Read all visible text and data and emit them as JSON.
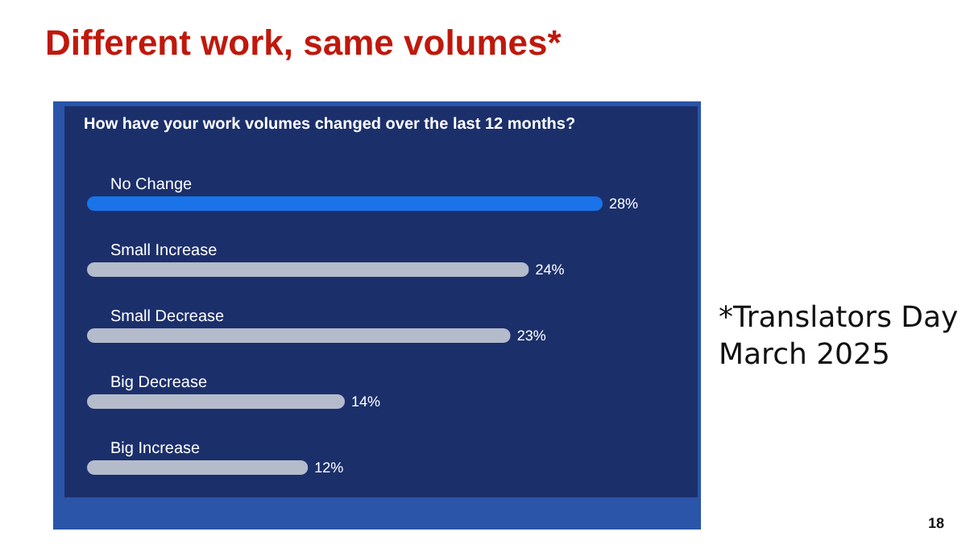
{
  "chart_data": {
    "type": "bar",
    "orientation": "horizontal",
    "title": "Different work, same volumes*",
    "subtitle": "How have your work volumes changed over the last 12 months?",
    "categories": [
      "No Change",
      "Small Increase",
      "Small Decrease",
      "Big Decrease",
      "Big Increase"
    ],
    "values": [
      28,
      24,
      23,
      14,
      12
    ],
    "colors": [
      "#1a73e8",
      "#b4bccb",
      "#b4bccb",
      "#b4bccb",
      "#b4bccb"
    ],
    "value_labels": [
      "28%",
      "24%",
      "23%",
      "14%",
      "12%"
    ],
    "annotations": [
      "*Translators Day\nMarch 2025",
      "18"
    ]
  }
}
